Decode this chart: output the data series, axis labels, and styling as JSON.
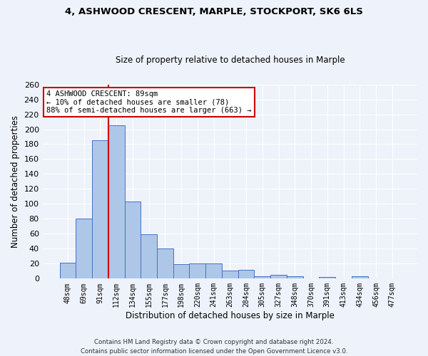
{
  "title": "4, ASHWOOD CRESCENT, MARPLE, STOCKPORT, SK6 6LS",
  "subtitle": "Size of property relative to detached houses in Marple",
  "xlabel": "Distribution of detached houses by size in Marple",
  "ylabel": "Number of detached properties",
  "categories": [
    "48sqm",
    "69sqm",
    "91sqm",
    "112sqm",
    "134sqm",
    "155sqm",
    "177sqm",
    "198sqm",
    "220sqm",
    "241sqm",
    "263sqm",
    "284sqm",
    "305sqm",
    "327sqm",
    "348sqm",
    "370sqm",
    "391sqm",
    "413sqm",
    "434sqm",
    "456sqm",
    "477sqm"
  ],
  "values": [
    21,
    80,
    185,
    205,
    103,
    59,
    40,
    19,
    20,
    20,
    11,
    12,
    3,
    5,
    3,
    0,
    2,
    0,
    3,
    0,
    0
  ],
  "bar_color": "#aec6e8",
  "bar_edge_color": "#4472c4",
  "highlight_color": "#cc0000",
  "annotation_text": "4 ASHWOOD CRESCENT: 89sqm\n← 10% of detached houses are smaller (78)\n88% of semi-detached houses are larger (663) →",
  "annotation_box_color": "#ffffff",
  "annotation_box_edge_color": "#cc0000",
  "vline_x": 2.5,
  "ylim": [
    0,
    260
  ],
  "yticks": [
    0,
    20,
    40,
    60,
    80,
    100,
    120,
    140,
    160,
    180,
    200,
    220,
    240,
    260
  ],
  "background_color": "#eef2fa",
  "grid_color": "#ffffff",
  "footer_line1": "Contains HM Land Registry data © Crown copyright and database right 2024.",
  "footer_line2": "Contains public sector information licensed under the Open Government Licence v3.0."
}
